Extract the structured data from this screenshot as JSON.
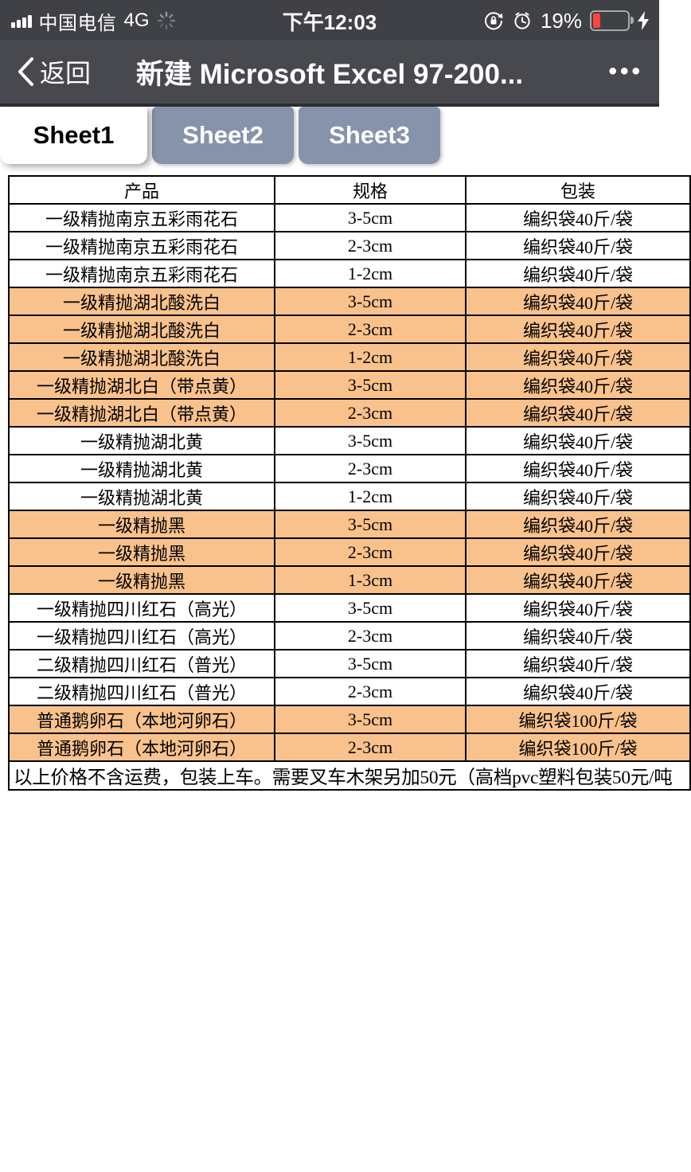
{
  "status_bar": {
    "carrier": "中国电信",
    "network": "4G",
    "time": "下午12:03",
    "battery_percent": "19%",
    "battery_level": 0.19,
    "charging": true
  },
  "nav_bar": {
    "back_label": "返回",
    "title": "新建 Microsoft Excel 97-200...",
    "more_label": "•••"
  },
  "sheet_tabs": [
    {
      "label": "Sheet1",
      "active": true
    },
    {
      "label": "Sheet2",
      "active": false
    },
    {
      "label": "Sheet3",
      "active": false
    }
  ],
  "table": {
    "headers": [
      "产品",
      "规格",
      "包装"
    ],
    "rows": [
      {
        "product": "一级精抛南京五彩雨花石",
        "spec": "3-5cm",
        "pack": "编织袋40斤/袋",
        "highlight": false
      },
      {
        "product": "一级精抛南京五彩雨花石",
        "spec": "2-3cm",
        "pack": "编织袋40斤/袋",
        "highlight": false
      },
      {
        "product": "一级精抛南京五彩雨花石",
        "spec": "1-2cm",
        "pack": "编织袋40斤/袋",
        "highlight": false
      },
      {
        "product": "一级精抛湖北酸洗白",
        "spec": "3-5cm",
        "pack": "编织袋40斤/袋",
        "highlight": true
      },
      {
        "product": "一级精抛湖北酸洗白",
        "spec": "2-3cm",
        "pack": "编织袋40斤/袋",
        "highlight": true
      },
      {
        "product": "一级精抛湖北酸洗白",
        "spec": "1-2cm",
        "pack": "编织袋40斤/袋",
        "highlight": true
      },
      {
        "product": "一级精抛湖北白（带点黄）",
        "spec": "3-5cm",
        "pack": "编织袋40斤/袋",
        "highlight": true
      },
      {
        "product": "一级精抛湖北白（带点黄）",
        "spec": "2-3cm",
        "pack": "编织袋40斤/袋",
        "highlight": true
      },
      {
        "product": "一级精抛湖北黄",
        "spec": "3-5cm",
        "pack": "编织袋40斤/袋",
        "highlight": false
      },
      {
        "product": "一级精抛湖北黄",
        "spec": "2-3cm",
        "pack": "编织袋40斤/袋",
        "highlight": false
      },
      {
        "product": "一级精抛湖北黄",
        "spec": "1-2cm",
        "pack": "编织袋40斤/袋",
        "highlight": false
      },
      {
        "product": "一级精抛黑",
        "spec": "3-5cm",
        "pack": "编织袋40斤/袋",
        "highlight": true
      },
      {
        "product": "一级精抛黑",
        "spec": "2-3cm",
        "pack": "编织袋40斤/袋",
        "highlight": true
      },
      {
        "product": "一级精抛黑",
        "spec": "1-3cm",
        "pack": "编织袋40斤/袋",
        "highlight": true
      },
      {
        "product": "一级精抛四川红石（高光）",
        "spec": "3-5cm",
        "pack": "编织袋40斤/袋",
        "highlight": false
      },
      {
        "product": "一级精抛四川红石（高光）",
        "spec": "2-3cm",
        "pack": "编织袋40斤/袋",
        "highlight": false
      },
      {
        "product": "二级精抛四川红石（普光）",
        "spec": "3-5cm",
        "pack": "编织袋40斤/袋",
        "highlight": false
      },
      {
        "product": "二级精抛四川红石（普光）",
        "spec": "2-3cm",
        "pack": "编织袋40斤/袋",
        "highlight": false
      },
      {
        "product": "普通鹅卵石（本地河卵石）",
        "spec": "3-5cm",
        "pack": "编织袋100斤/袋",
        "highlight": true
      },
      {
        "product": "普通鹅卵石（本地河卵石）",
        "spec": "2-3cm",
        "pack": "编织袋100斤/袋",
        "highlight": true
      }
    ],
    "footer_note": "以上价格不含运费，包装上车。需要叉车木架另加50元（高档pvc塑料包装50元/吨"
  },
  "icons": {
    "signal-icon": "4 ascending bars",
    "spinner-icon": "ios activity spinner",
    "rotation-lock-icon": "lock inside circular arrow",
    "alarm-icon": "alarm clock",
    "battery-icon": "battery 19% red fill",
    "charging-bolt-icon": "lightning bolt",
    "back-chevron-icon": "left chevron",
    "more-icon": "three dots"
  },
  "colors": {
    "status_bar_bg": "#3f4147",
    "nav_bar_bg": "#47494f",
    "tab_inactive_bg": "#8693aa",
    "row_highlight": "#f9c28c",
    "battery_fill": "#ff453a",
    "table_border": "#000000"
  }
}
